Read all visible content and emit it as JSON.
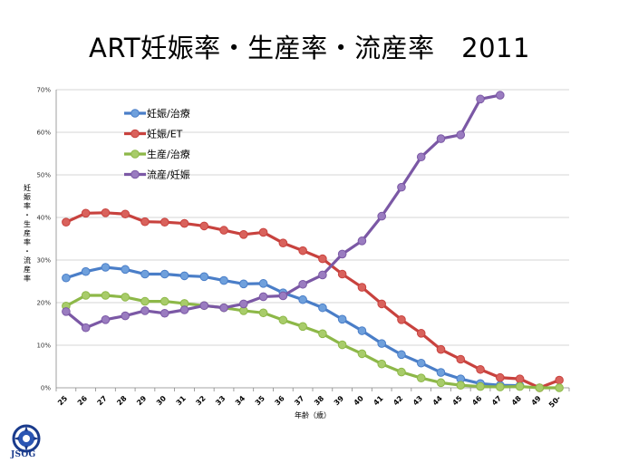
{
  "title": "ART妊娠率・生産率・流産率　2011",
  "logo": {
    "text": "JSOG",
    "icon": "jsog-emblem-icon"
  },
  "chart_data": {
    "type": "line",
    "title": "ART妊娠率・生産率・流産率　2011",
    "xlabel": "年齢（歳）",
    "ylabel": "妊娠率・生産率・流産率",
    "categories": [
      "25",
      "26",
      "27",
      "28",
      "29",
      "30",
      "31",
      "32",
      "33",
      "34",
      "35",
      "36",
      "37",
      "38",
      "39",
      "40",
      "41",
      "42",
      "43",
      "44",
      "45",
      "46",
      "47",
      "48",
      "49",
      "50-"
    ],
    "ylim": [
      0,
      70
    ],
    "yticks": [
      "0%",
      "10%",
      "20%",
      "30%",
      "40%",
      "50%",
      "60%",
      "70%"
    ],
    "grid": true,
    "legend_position": "top-left",
    "series": [
      {
        "name": "妊娠/治療",
        "color": "#4a7ec8",
        "fill": "#6fa0dc",
        "values": [
          25.8,
          27.3,
          28.3,
          27.8,
          26.7,
          26.7,
          26.3,
          26.1,
          25.2,
          24.4,
          24.5,
          22.3,
          20.7,
          18.8,
          16.1,
          13.4,
          10.4,
          7.8,
          5.8,
          3.6,
          2.1,
          1.0,
          0.6,
          0.5,
          null,
          null
        ]
      },
      {
        "name": "妊娠/ET",
        "color": "#c8423e",
        "fill": "#d9625c",
        "values": [
          38.9,
          41.0,
          41.1,
          40.8,
          39.0,
          38.9,
          38.6,
          38.0,
          37.0,
          36.0,
          36.5,
          34.0,
          32.2,
          30.3,
          26.7,
          23.6,
          19.7,
          16.0,
          12.8,
          9.0,
          6.7,
          4.3,
          2.4,
          2.1,
          0.0,
          1.8
        ]
      },
      {
        "name": "生産/治療",
        "color": "#8db848",
        "fill": "#a8cc6a",
        "values": [
          19.2,
          21.7,
          21.7,
          21.3,
          20.3,
          20.3,
          19.8,
          19.3,
          18.8,
          18.1,
          17.6,
          15.9,
          14.4,
          12.7,
          10.1,
          8.0,
          5.6,
          3.7,
          2.3,
          1.2,
          0.6,
          0.3,
          0.2,
          0.3,
          0.0,
          0.0
        ]
      },
      {
        "name": "流産/妊娠",
        "color": "#7b58a5",
        "fill": "#9a7cc0",
        "values": [
          17.9,
          14.1,
          16.0,
          16.9,
          18.1,
          17.5,
          18.3,
          19.3,
          18.8,
          19.7,
          21.4,
          21.6,
          24.3,
          26.5,
          31.4,
          34.5,
          40.3,
          47.1,
          54.2,
          58.5,
          59.4,
          67.8,
          68.7,
          null,
          null,
          null
        ]
      }
    ]
  }
}
